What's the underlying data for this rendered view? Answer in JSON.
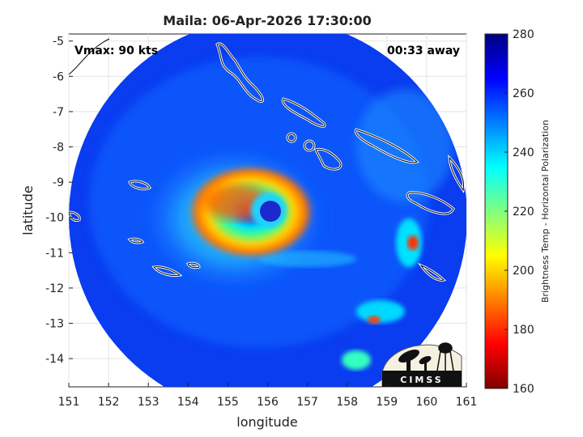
{
  "title": "Maila: 06-Apr-2026 17:30:00",
  "vmax_label": "Vmax: 90 kts",
  "time_label": "00:33 away",
  "xlabel": "longitude",
  "ylabel": "latitude",
  "colorbar_label": "Brightness Temp - Horizontal Polarization",
  "logo_text": "CIMSS",
  "chart_data": {
    "type": "heatmap",
    "xlim": [
      151,
      161
    ],
    "ylim": [
      -14.8,
      -4.8
    ],
    "x_ticks": [
      "151",
      "152",
      "153",
      "154",
      "155",
      "156",
      "157",
      "158",
      "159",
      "160",
      "161"
    ],
    "y_ticks": [
      "-5",
      "-6",
      "-7",
      "-8",
      "-9",
      "-10",
      "-11",
      "-12",
      "-13",
      "-14"
    ],
    "x_tick_values": [
      151,
      152,
      153,
      154,
      155,
      156,
      157,
      158,
      159,
      160,
      161
    ],
    "y_tick_values": [
      -5,
      -6,
      -7,
      -8,
      -9,
      -10,
      -11,
      -12,
      -13,
      -14
    ],
    "colorbar": {
      "range": [
        160,
        280
      ],
      "ticks": [
        "280",
        "260",
        "240",
        "220",
        "200",
        "180",
        "160"
      ],
      "tick_values": [
        280,
        260,
        240,
        220,
        200,
        180,
        160
      ],
      "colormap": "jet_reversed"
    },
    "swath_center": [
      156,
      -10.1
    ],
    "swath_radius_deg": 4.9,
    "storm_eye": [
      156.2,
      -10.05
    ],
    "grid": true
  },
  "colors": {
    "background": "#ffffff",
    "coast": "#ffffff",
    "eye": "#1a2acc"
  }
}
